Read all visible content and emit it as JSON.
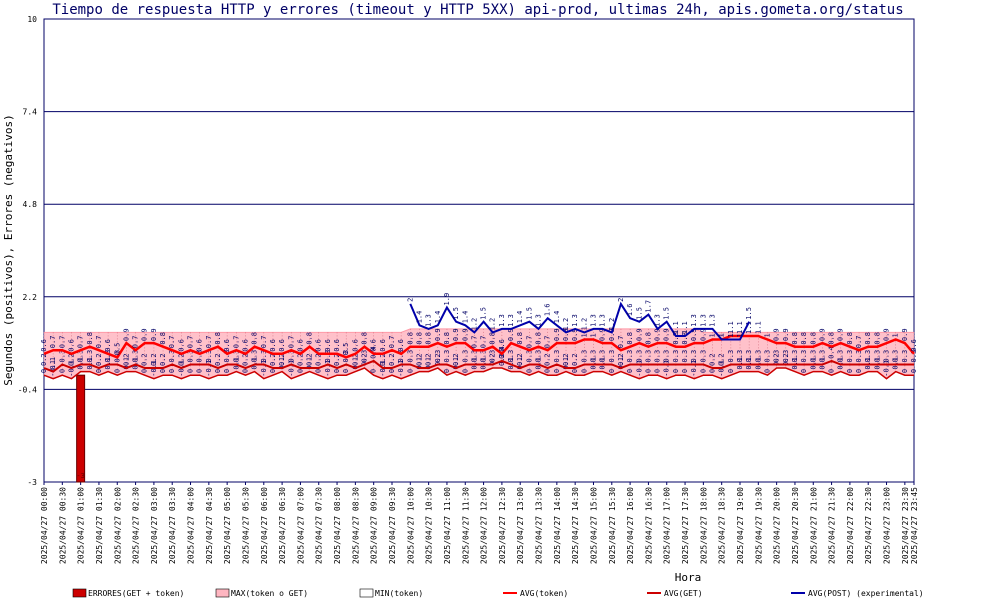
{
  "chart_data": {
    "type": "line",
    "title": "Tiempo de respuesta HTTP y errores (timeout y HTTP 5XX) api-prod, ultimas 24h, apis.gometa.org/status",
    "xlabel": "Hora",
    "ylabel": "Segundos (positivos), Errores (negativos)",
    "ylim": [
      -3,
      10
    ],
    "yticks": [
      "10",
      "7.4",
      "4.8",
      "2.2",
      "-0.4",
      "-3"
    ],
    "grid": true,
    "xticks": [
      "2025/04/27 00:00",
      "2025/04/27 00:30",
      "2025/04/27 01:00",
      "2025/04/27 01:30",
      "2025/04/27 02:00",
      "2025/04/27 02:30",
      "2025/04/27 03:00",
      "2025/04/27 03:30",
      "2025/04/27 04:00",
      "2025/04/27 04:30",
      "2025/04/27 05:00",
      "2025/04/27 05:30",
      "2025/04/27 06:00",
      "2025/04/27 06:30",
      "2025/04/27 07:00",
      "2025/04/27 07:30",
      "2025/04/27 08:00",
      "2025/04/27 08:30",
      "2025/04/27 09:00",
      "2025/04/27 09:30",
      "2025/04/27 10:00",
      "2025/04/27 10:30",
      "2025/04/27 11:00",
      "2025/04/27 11:30",
      "2025/04/27 12:00",
      "2025/04/27 12:30",
      "2025/04/27 13:00",
      "2025/04/27 13:30",
      "2025/04/27 14:00",
      "2025/04/27 14:30",
      "2025/04/27 15:00",
      "2025/04/27 15:30",
      "2025/04/27 16:00",
      "2025/04/27 16:30",
      "2025/04/27 17:00",
      "2025/04/27 17:30",
      "2025/04/27 18:00",
      "2025/04/27 18:30",
      "2025/04/27 19:00",
      "2025/04/27 19:30",
      "2025/04/27 20:00",
      "2025/04/27 20:30",
      "2025/04/27 21:00",
      "2025/04/27 21:30",
      "2025/04/27 22:00",
      "2025/04/27 22:30",
      "2025/04/27 23:00",
      "2025/04/27 23:30",
      "2025/04/27 23:45"
    ],
    "x_hours": [
      0,
      0.25,
      0.5,
      0.75,
      1,
      1.25,
      1.5,
      1.75,
      2,
      2.25,
      2.5,
      2.75,
      3,
      3.25,
      3.5,
      3.75,
      4,
      4.25,
      4.5,
      4.75,
      5,
      5.25,
      5.5,
      5.75,
      6,
      6.25,
      6.5,
      6.75,
      7,
      7.25,
      7.5,
      7.75,
      8,
      8.25,
      8.5,
      8.75,
      9,
      9.25,
      9.5,
      9.75,
      10,
      10.25,
      10.5,
      10.75,
      11,
      11.25,
      11.5,
      11.75,
      12,
      12.25,
      12.5,
      12.75,
      13,
      13.25,
      13.5,
      13.75,
      14,
      14.25,
      14.5,
      14.75,
      15,
      15.25,
      15.5,
      15.75,
      16,
      16.25,
      16.5,
      16.75,
      17,
      17.25,
      17.5,
      17.75,
      18,
      18.25,
      18.5,
      18.75,
      19,
      19.25,
      19.5,
      19.75,
      20,
      20.25,
      20.5,
      20.75,
      21,
      21.25,
      21.5,
      21.75,
      22,
      22.25,
      22.5,
      22.75,
      23,
      23.25,
      23.5,
      23.75
    ],
    "series": [
      {
        "name": "ERRORES(GET + token)",
        "kind": "bar",
        "color": "#cc0000",
        "points": [
          [
            1,
            -3
          ]
        ]
      },
      {
        "name": "MAX(token o GET)",
        "kind": "band",
        "color": "#ffb6c1",
        "values": [
          1.2,
          1.2,
          1.2,
          1.2,
          1.2,
          1.2,
          1.2,
          1.2,
          1.2,
          1.2,
          1.2,
          1.2,
          1.2,
          1.2,
          1.2,
          1.2,
          1.2,
          1.2,
          1.2,
          1.2,
          1.2,
          1.2,
          1.2,
          1.2,
          1.2,
          1.2,
          1.2,
          1.2,
          1.2,
          1.2,
          1.2,
          1.2,
          1.2,
          1.2,
          1.2,
          1.2,
          1.2,
          1.2,
          1.2,
          1.2,
          1.3,
          1.3,
          1.3,
          1.3,
          1.3,
          1.3,
          1.3,
          1.3,
          1.3,
          1.3,
          1.3,
          1.3,
          1.3,
          1.3,
          1.3,
          1.3,
          1.3,
          1.3,
          1.3,
          1.3,
          1.3,
          1.3,
          1.3,
          1.3,
          1.3,
          1.3,
          1.3,
          1.3,
          1.3,
          1.3,
          1.3,
          1.3,
          1.2,
          1.2,
          1.2,
          1.2,
          1.2,
          1.2,
          1.2,
          1.2,
          1.2,
          1.2,
          1.2,
          1.2,
          1.2,
          1.2,
          1.2,
          1.2,
          1.2,
          1.2,
          1.2,
          1.2,
          1.2,
          1.2,
          1.2,
          1.2
        ]
      },
      {
        "name": "MIN(token)",
        "kind": "line",
        "color": "#cc0000",
        "values": [
          0,
          -0.1,
          0,
          -0.1,
          0.1,
          0.1,
          0,
          0.1,
          0,
          0.1,
          0.1,
          0,
          -0.1,
          0,
          0,
          -0.1,
          0,
          0,
          -0.1,
          0,
          0,
          0.1,
          0,
          0.1,
          -0.1,
          0,
          0.1,
          -0.1,
          0,
          0.1,
          0,
          -0.1,
          0,
          0,
          0.1,
          0.2,
          0,
          -0.1,
          0,
          -0.1,
          0,
          0.1,
          0.1,
          0.2,
          0,
          0.1,
          0,
          0.1,
          0.1,
          0.2,
          0.2,
          0.1,
          0.1,
          0,
          0.1,
          0,
          0,
          0.1,
          0,
          0,
          0.1,
          0.1,
          0,
          0.1,
          0,
          -0.1,
          0,
          0,
          -0.1,
          0,
          0,
          -0.1,
          0,
          0,
          -0.1,
          0,
          0.1,
          0.1,
          0.1,
          0,
          0.2,
          0.2,
          0.1,
          0,
          0.1,
          0.1,
          0,
          0.1,
          0,
          0,
          0.1,
          0.1,
          -0.1,
          0.1,
          0,
          0
        ]
      },
      {
        "name": "AVG(token)",
        "kind": "line",
        "color": "#ff0000",
        "values": [
          0.6,
          0.7,
          0.7,
          0.6,
          0.7,
          0.8,
          0.7,
          0.6,
          0.5,
          0.9,
          0.7,
          0.9,
          0.9,
          0.8,
          0.7,
          0.6,
          0.7,
          0.6,
          0.7,
          0.8,
          0.6,
          0.7,
          0.6,
          0.8,
          0.7,
          0.6,
          0.6,
          0.7,
          0.6,
          0.8,
          0.6,
          0.6,
          0.6,
          0.5,
          0.6,
          0.8,
          0.6,
          0.6,
          0.7,
          0.6,
          0.8,
          0.8,
          0.8,
          0.9,
          0.8,
          0.9,
          0.9,
          0.7,
          0.7,
          0.8,
          0.6,
          0.9,
          0.8,
          0.7,
          0.8,
          0.7,
          0.9,
          0.9,
          0.9,
          1,
          1,
          0.9,
          0.9,
          0.7,
          0.8,
          0.9,
          0.8,
          0.9,
          0.9,
          0.8,
          0.8,
          0.9,
          0.9,
          1,
          1,
          1.1,
          1.1,
          1.1,
          1.1,
          1,
          0.9,
          0.9,
          0.8,
          0.8,
          0.8,
          0.9,
          0.8,
          0.9,
          0.8,
          0.7,
          0.8,
          0.8,
          0.9,
          1,
          0.9,
          0.6
        ]
      },
      {
        "name": "AVG(GET)",
        "kind": "line",
        "color": "#cc0000",
        "values": [
          0.2,
          0.1,
          0.3,
          0.2,
          0.3,
          0.3,
          0.2,
          0.3,
          0.3,
          0.2,
          0.3,
          0.2,
          0.2,
          0.2,
          0.3,
          0.2,
          0.3,
          0.3,
          0.3,
          0.2,
          0.3,
          0.3,
          0.2,
          0.3,
          0.3,
          0.2,
          0.2,
          0.3,
          0.2,
          0.2,
          0.2,
          0.3,
          0.2,
          0.3,
          0.2,
          0.3,
          0.4,
          0.2,
          0.2,
          0.3,
          0.3,
          0.2,
          0.2,
          0.3,
          0.3,
          0.2,
          0.3,
          0.3,
          0.3,
          0.3,
          0.4,
          0.3,
          0.2,
          0.3,
          0.3,
          0.2,
          0.3,
          0.2,
          0.2,
          0.3,
          0.3,
          0.3,
          0.3,
          0.2,
          0.3,
          0.3,
          0.3,
          0.3,
          0.3,
          0.3,
          0.3,
          0.3,
          0.3,
          0.2,
          0.2,
          0.3,
          0.3,
          0.3,
          0.3,
          0.3,
          0.3,
          0.3,
          0.3,
          0.3,
          0.3,
          0.3,
          0.4,
          0.3,
          0.3,
          0.3,
          0.3,
          0.3,
          0.3,
          0.3,
          0.3,
          0.3
        ]
      },
      {
        "name": "AVG(POST) (experimental)",
        "kind": "line",
        "color": "#0000aa",
        "start_hour": 10,
        "end_hour": 19.25,
        "values": [
          2,
          1.4,
          1.3,
          1.4,
          1.9,
          1.5,
          1.4,
          1.2,
          1.5,
          1.2,
          1.3,
          1.3,
          1.4,
          1.5,
          1.3,
          1.6,
          1.4,
          1.2,
          1.3,
          1.2,
          1.3,
          1.3,
          1.2,
          2,
          1.6,
          1.5,
          1.7,
          1.3,
          1.5,
          1.1,
          1.1,
          1.3,
          1.3,
          1.3,
          1,
          1,
          1,
          1.5
        ]
      }
    ]
  },
  "legend": [
    {
      "label": "ERRORES(GET + token)",
      "kind": "box",
      "color": "#cc0000"
    },
    {
      "label": "MAX(token o GET)",
      "kind": "box",
      "color": "#ffb6c1"
    },
    {
      "label": "MIN(token)",
      "kind": "box",
      "color": "#ffffff"
    },
    {
      "label": "AVG(token)",
      "kind": "line",
      "color": "#ff0000"
    },
    {
      "label": "AVG(GET)",
      "kind": "line",
      "color": "#cc0000"
    },
    {
      "label": "AVG(POST) (experimental)",
      "kind": "line",
      "color": "#0000aa"
    }
  ]
}
